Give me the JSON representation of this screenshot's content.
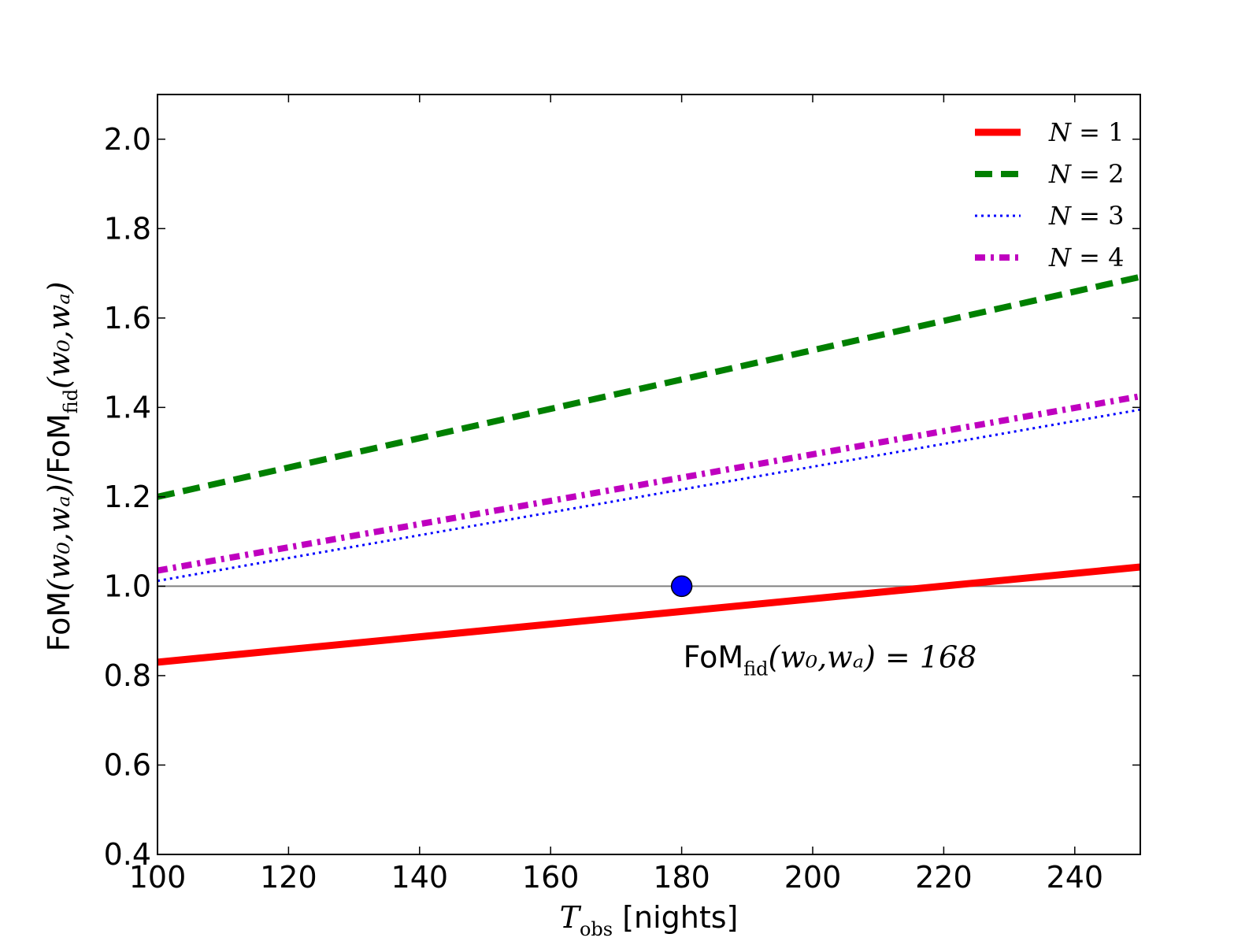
{
  "chart_data": {
    "type": "line",
    "xlabel": {
      "symbol": "T",
      "subscript": "obs",
      "unit": " [nights]"
    },
    "ylabel": {
      "numerator": "FoM",
      "denominator": "FoM",
      "denominator_subscript": "fid",
      "args": "(w₀,wₐ)"
    },
    "xlim": [
      100,
      250
    ],
    "ylim": [
      0.4,
      2.1
    ],
    "x_ticks": [
      100,
      120,
      140,
      160,
      180,
      200,
      220,
      240
    ],
    "y_ticks": [
      0.4,
      0.6,
      0.8,
      1.0,
      1.2,
      1.4,
      1.6,
      1.8,
      2.0
    ],
    "x_tick_labels": [
      "100",
      "120",
      "140",
      "160",
      "180",
      "200",
      "220",
      "240"
    ],
    "y_tick_labels": [
      "0.4",
      "0.6",
      "0.8",
      "1.0",
      "1.2",
      "1.4",
      "1.6",
      "1.8",
      "2.0"
    ],
    "grid": false,
    "legend_placement": "top-right",
    "reference_line": {
      "y": 1.0,
      "color": "#808080"
    },
    "marker": {
      "x": 180,
      "y": 1.0,
      "color": "#0000ff"
    },
    "annotation": {
      "text_main": "FoM",
      "text_sub": "fid",
      "text_args": "(w₀,wₐ) = 168",
      "x": 180,
      "y": 0.85
    },
    "series": [
      {
        "name": "N = 1",
        "x": [
          100,
          250
        ],
        "y": [
          0.83,
          1.043
        ],
        "color": "#ff0000",
        "style": "solid"
      },
      {
        "name": "N = 2",
        "x": [
          100,
          250
        ],
        "y": [
          1.2,
          1.692
        ],
        "color": "#008000",
        "style": "dashed"
      },
      {
        "name": "N = 3",
        "x": [
          100,
          250
        ],
        "y": [
          1.012,
          1.395
        ],
        "color": "#0000ff",
        "style": "dotted"
      },
      {
        "name": "N = 4",
        "x": [
          100,
          250
        ],
        "y": [
          1.035,
          1.425
        ],
        "color": "#bf00bf",
        "style": "dashdot"
      }
    ]
  }
}
